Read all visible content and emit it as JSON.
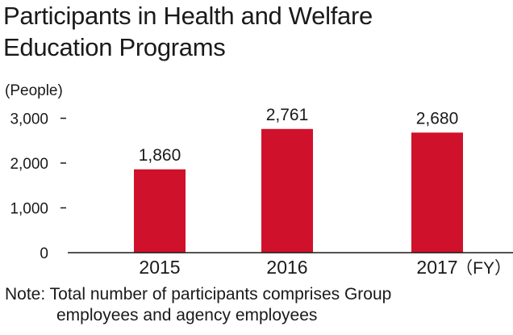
{
  "chart_data": {
    "type": "bar",
    "title_line1": "Participants in Health and Welfare",
    "title_line2": "Education Programs",
    "ylabel": "(People)",
    "xlabel": "（FY）",
    "categories": [
      "2015",
      "2016",
      "2017"
    ],
    "values": [
      1860,
      2761,
      2680
    ],
    "value_labels": [
      "1,860",
      "2,761",
      "2,680"
    ],
    "y_ticks": [
      0,
      1000,
      2000,
      3000
    ],
    "y_tick_labels": [
      "0",
      "1,000",
      "2,000",
      "3,000"
    ],
    "ylim": [
      0,
      3000
    ],
    "grid": false,
    "legend": "none",
    "bar_color": "#d0112b"
  },
  "note": {
    "line1": "Note: Total number of participants comprises Group",
    "line2": "employees and agency employees"
  }
}
